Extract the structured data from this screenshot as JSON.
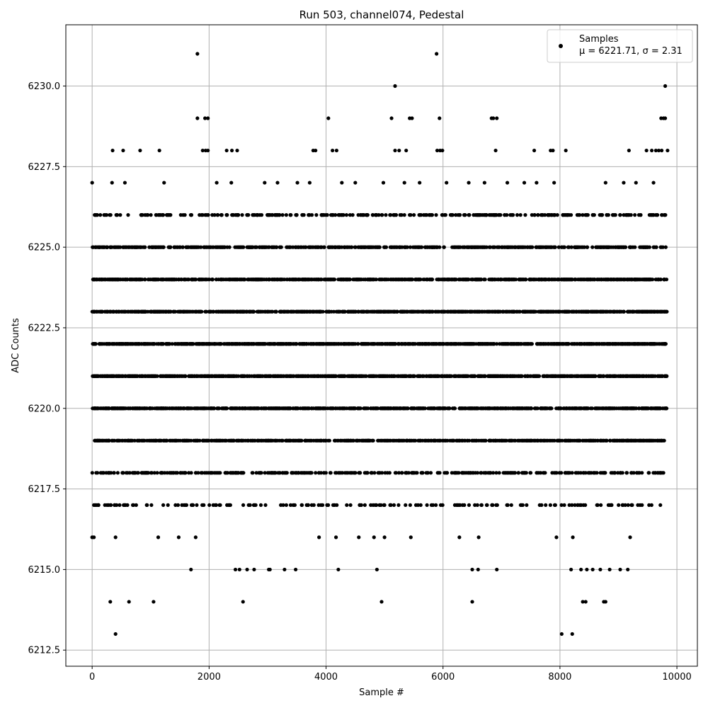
{
  "chart_data": {
    "type": "scatter",
    "title": "Run 503, channel074, Pedestal",
    "xlabel": "Sample #",
    "ylabel": "ADC Counts",
    "xlim": [
      -450,
      10350
    ],
    "ylim": [
      6212.0,
      6231.9
    ],
    "xticks": [
      0,
      2000,
      4000,
      6000,
      8000,
      10000
    ],
    "xtick_labels": [
      "0",
      "2000",
      "4000",
      "6000",
      "8000",
      "10000"
    ],
    "yticks": [
      6212.5,
      6215.0,
      6217.5,
      6220.0,
      6222.5,
      6225.0,
      6227.5,
      6230.0
    ],
    "ytick_labels": [
      "6212.5",
      "6215.0",
      "6217.5",
      "6220.0",
      "6222.5",
      "6225.0",
      "6227.5",
      "6230.0"
    ],
    "grid": true,
    "legend_position": "top-right",
    "series": [
      {
        "name": "Samples",
        "label_line2": "μ = 6221.71, σ = 2.31",
        "color": "#000000",
        "marker": "circle",
        "points": [
          [
            1800,
            6231
          ],
          [
            5890,
            6231
          ],
          [
            5180,
            6230
          ],
          [
            9800,
            6230
          ],
          [
            1800,
            6229
          ],
          [
            1930,
            6229
          ],
          [
            1980,
            6229
          ],
          [
            4040,
            6229
          ],
          [
            5120,
            6229
          ],
          [
            5430,
            6229
          ],
          [
            5470,
            6229
          ],
          [
            5940,
            6229
          ],
          [
            6830,
            6229
          ],
          [
            6860,
            6229
          ],
          [
            6920,
            6229
          ],
          [
            9730,
            6229
          ],
          [
            9770,
            6229
          ],
          [
            9800,
            6229
          ],
          [
            350,
            6228
          ],
          [
            530,
            6228
          ],
          [
            820,
            6228
          ],
          [
            1150,
            6228
          ],
          [
            1890,
            6228
          ],
          [
            1940,
            6228
          ],
          [
            1980,
            6228
          ],
          [
            2300,
            6228
          ],
          [
            2390,
            6228
          ],
          [
            2480,
            6228
          ],
          [
            3780,
            6228
          ],
          [
            3820,
            6228
          ],
          [
            4110,
            6228
          ],
          [
            4180,
            6228
          ],
          [
            5180,
            6228
          ],
          [
            5250,
            6228
          ],
          [
            5370,
            6228
          ],
          [
            5900,
            6228
          ],
          [
            5950,
            6228
          ],
          [
            5990,
            6228
          ],
          [
            6900,
            6228
          ],
          [
            7560,
            6228
          ],
          [
            7840,
            6228
          ],
          [
            7880,
            6228
          ],
          [
            8100,
            6228
          ],
          [
            9180,
            6228
          ],
          [
            9480,
            6228
          ],
          [
            9570,
            6228
          ],
          [
            9640,
            6228
          ],
          [
            9690,
            6228
          ],
          [
            9740,
            6228
          ],
          [
            9840,
            6228
          ],
          [
            0,
            6227
          ],
          [
            340,
            6227
          ],
          [
            560,
            6227
          ],
          [
            1230,
            6227
          ],
          [
            2130,
            6227
          ],
          [
            2380,
            6227
          ],
          [
            2950,
            6227
          ],
          [
            3170,
            6227
          ],
          [
            3510,
            6227
          ],
          [
            3720,
            6227
          ],
          [
            4270,
            6227
          ],
          [
            4500,
            6227
          ],
          [
            4980,
            6227
          ],
          [
            5340,
            6227
          ],
          [
            5600,
            6227
          ],
          [
            6060,
            6227
          ],
          [
            6440,
            6227
          ],
          [
            6710,
            6227
          ],
          [
            7100,
            6227
          ],
          [
            7390,
            6227
          ],
          [
            7600,
            6227
          ],
          [
            7900,
            6227
          ],
          [
            8780,
            6227
          ],
          [
            9090,
            6227
          ],
          [
            9300,
            6227
          ],
          [
            9600,
            6227
          ],
          [
            8120,
            6226
          ],
          [
            8800,
            6226
          ],
          [
            9140,
            6226
          ],
          [
            5000,
            6225
          ],
          [
            7100,
            6225
          ],
          [
            4000,
            6224
          ],
          [
            8030,
            6224
          ],
          [
            3000,
            6223
          ],
          [
            6200,
            6223
          ],
          [
            2000,
            6222
          ],
          [
            7900,
            6222
          ],
          [
            1000,
            6221
          ],
          [
            6800,
            6221
          ],
          [
            9700,
            6220
          ],
          [
            3600,
            6220
          ],
          [
            9640,
            6219
          ],
          [
            5500,
            6219
          ],
          [
            90,
            6218
          ],
          [
            9770,
            6218
          ],
          [
            8400,
            6218
          ],
          [
            50,
            6217
          ],
          [
            110,
            6217
          ],
          [
            3940,
            6217
          ],
          [
            7430,
            6217
          ],
          [
            9370,
            6217
          ],
          [
            0,
            6216
          ],
          [
            30,
            6216
          ],
          [
            400,
            6216
          ],
          [
            1130,
            6216
          ],
          [
            1480,
            6216
          ],
          [
            1770,
            6216
          ],
          [
            3880,
            6216
          ],
          [
            4170,
            6216
          ],
          [
            4560,
            6216
          ],
          [
            4820,
            6216
          ],
          [
            5000,
            6216
          ],
          [
            5450,
            6216
          ],
          [
            6280,
            6216
          ],
          [
            6610,
            6216
          ],
          [
            7940,
            6216
          ],
          [
            8220,
            6216
          ],
          [
            9200,
            6216
          ],
          [
            1690,
            6215
          ],
          [
            2450,
            6215
          ],
          [
            2520,
            6215
          ],
          [
            2650,
            6215
          ],
          [
            2770,
            6215
          ],
          [
            3020,
            6215
          ],
          [
            3040,
            6215
          ],
          [
            3290,
            6215
          ],
          [
            3480,
            6215
          ],
          [
            4210,
            6215
          ],
          [
            4870,
            6215
          ],
          [
            6500,
            6215
          ],
          [
            6600,
            6215
          ],
          [
            6920,
            6215
          ],
          [
            8190,
            6215
          ],
          [
            8360,
            6215
          ],
          [
            8460,
            6215
          ],
          [
            8560,
            6215
          ],
          [
            8690,
            6215
          ],
          [
            8850,
            6215
          ],
          [
            9030,
            6215
          ],
          [
            9160,
            6215
          ],
          [
            310,
            6214
          ],
          [
            630,
            6214
          ],
          [
            1050,
            6214
          ],
          [
            2580,
            6214
          ],
          [
            4950,
            6214
          ],
          [
            6500,
            6214
          ],
          [
            8390,
            6214
          ],
          [
            8440,
            6214
          ],
          [
            8750,
            6214
          ],
          [
            8780,
            6214
          ],
          [
            400,
            6213
          ],
          [
            8030,
            6213
          ],
          [
            8210,
            6213
          ]
        ],
        "dense_rows": [
          {
            "y": 6226,
            "x_start": 0,
            "x_end": 9830,
            "count": 330
          },
          {
            "y": 6225,
            "x_start": 0,
            "x_end": 9830,
            "count": 560
          },
          {
            "y": 6224,
            "x_start": 0,
            "x_end": 9830,
            "count": 900
          },
          {
            "y": 6223,
            "x_start": 0,
            "x_end": 9830,
            "count": 1000
          },
          {
            "y": 6222,
            "x_start": 0,
            "x_end": 9830,
            "count": 1000
          },
          {
            "y": 6221,
            "x_start": 0,
            "x_end": 9830,
            "count": 950
          },
          {
            "y": 6220,
            "x_start": 0,
            "x_end": 9830,
            "count": 820
          },
          {
            "y": 6219,
            "x_start": 0,
            "x_end": 9830,
            "count": 680
          },
          {
            "y": 6218,
            "x_start": 0,
            "x_end": 9830,
            "count": 380
          },
          {
            "y": 6217,
            "x_start": 0,
            "x_end": 9830,
            "count": 170
          }
        ]
      }
    ]
  }
}
